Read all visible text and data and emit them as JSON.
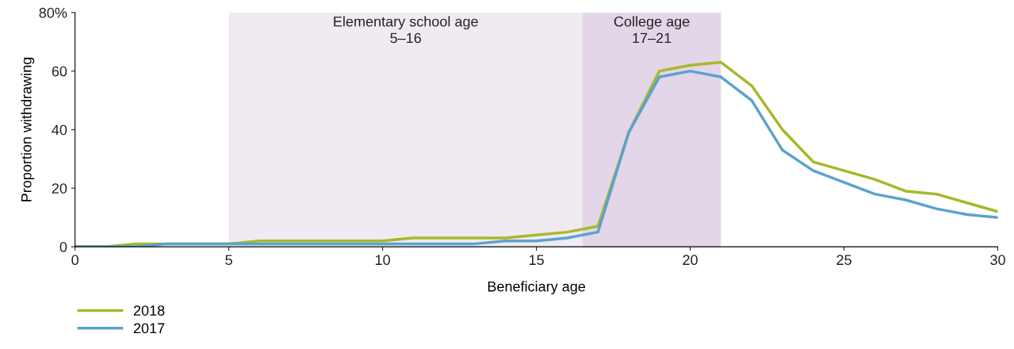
{
  "chart_data": {
    "type": "line",
    "xlabel": "Beneficiary age",
    "ylabel": "Proportion withdrawing",
    "x": [
      0,
      1,
      2,
      3,
      4,
      5,
      6,
      7,
      8,
      9,
      10,
      11,
      12,
      13,
      14,
      15,
      16,
      17,
      18,
      19,
      20,
      21,
      22,
      23,
      24,
      25,
      26,
      27,
      28,
      29,
      30
    ],
    "series": [
      {
        "name": "2018",
        "color": "#a8b829",
        "values": [
          0,
          0,
          1,
          1,
          1,
          1,
          2,
          2,
          2,
          2,
          2,
          3,
          3,
          3,
          3,
          4,
          5,
          7,
          39,
          60,
          62,
          63,
          55,
          40,
          29,
          26,
          23,
          19,
          18,
          15,
          12
        ]
      },
      {
        "name": "2017",
        "color": "#5ba3cc",
        "values": [
          0,
          0,
          0,
          1,
          1,
          1,
          1,
          1,
          1,
          1,
          1,
          1,
          1,
          1,
          2,
          2,
          3,
          5,
          39,
          58,
          60,
          58,
          50,
          33,
          26,
          22,
          18,
          16,
          13,
          11,
          10
        ]
      }
    ],
    "xlim": [
      0,
      30
    ],
    "xticks": [
      0,
      5,
      10,
      15,
      20,
      25,
      30
    ],
    "ylim": [
      0,
      80
    ],
    "yticks": [
      0,
      20,
      40,
      60,
      {
        "value": 80,
        "label": "80%"
      }
    ],
    "bands": [
      {
        "axis": "x",
        "from": 5,
        "to": 16.5,
        "label": "Elementary school age\n5–16",
        "color": "#f0eaf2"
      },
      {
        "axis": "x",
        "from": 16.5,
        "to": 21,
        "label": "College age\n17–21",
        "color": "#e3d6e8"
      }
    ],
    "grid": false,
    "legend": "bottom left",
    "marker": "none",
    "line_style": "solid"
  }
}
